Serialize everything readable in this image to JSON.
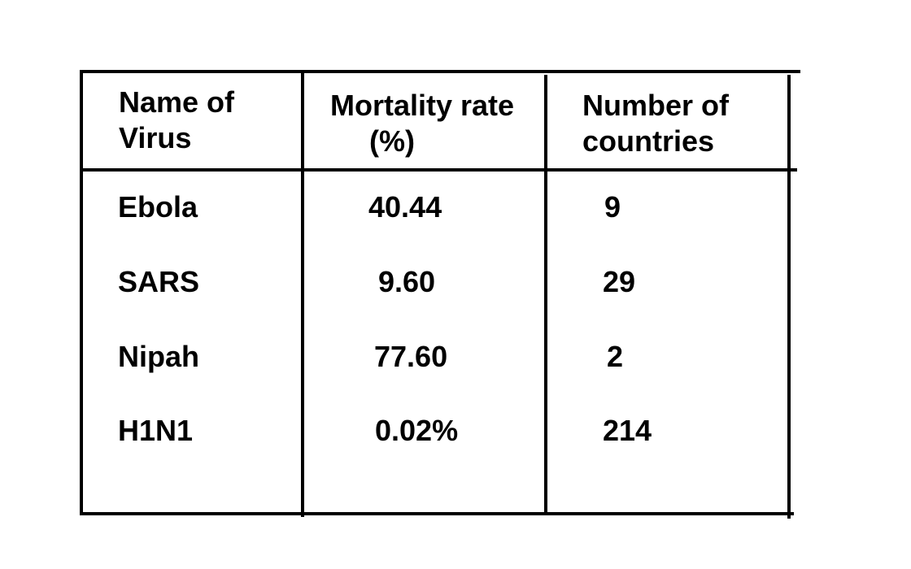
{
  "table": {
    "headers": [
      {
        "line1": "Name of",
        "line2": "Virus"
      },
      {
        "line1": "Mortality rate",
        "line2": "(%)"
      },
      {
        "line1": "Number of",
        "line2": "countries"
      }
    ],
    "rows": [
      {
        "name": "Ebola",
        "mortality": "40.44",
        "countries": "9"
      },
      {
        "name": "SARS",
        "mortality": "9.60",
        "countries": "29"
      },
      {
        "name": "Nipah",
        "mortality": "77.60",
        "countries": "2"
      },
      {
        "name": "H1N1",
        "mortality": "0.02%",
        "countries": "214"
      }
    ]
  }
}
